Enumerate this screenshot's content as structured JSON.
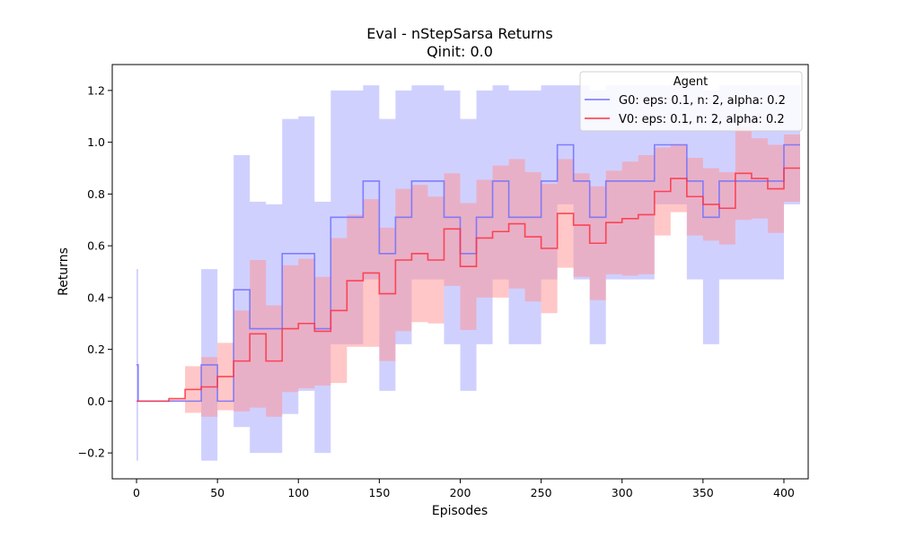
{
  "chart_data": {
    "type": "line",
    "title": "Eval - nStepSarsa Returns",
    "subtitle": "Qinit: 0.0",
    "xlabel": "Episodes",
    "ylabel": "Returns",
    "xlim": [
      -15,
      415
    ],
    "ylim": [
      -0.3,
      1.3
    ],
    "xticks": [
      0,
      50,
      100,
      150,
      200,
      250,
      300,
      350,
      400
    ],
    "yticks": [
      -0.2,
      0.0,
      0.2,
      0.4,
      0.6,
      0.8,
      1.0,
      1.2
    ],
    "ytick_labels": [
      "−0.2",
      "0.0",
      "0.2",
      "0.4",
      "0.6",
      "0.8",
      "1.0",
      "1.2"
    ],
    "grid": false,
    "legend": {
      "title": "Agent",
      "placement": "top-right"
    },
    "colors": {
      "G0": "#7070ff",
      "V0": "#ff3040",
      "G0_band": "#c8c8ff",
      "V0_band": "#ff9090"
    },
    "series": [
      {
        "name": "G0: eps: 0.1, n: 2, alpha: 0.2",
        "x": [
          0,
          1,
          2,
          10,
          20,
          30,
          40,
          50,
          60,
          70,
          80,
          90,
          100,
          110,
          120,
          130,
          140,
          150,
          160,
          170,
          180,
          190,
          200,
          210,
          220,
          230,
          240,
          250,
          260,
          270,
          280,
          290,
          300,
          310,
          320,
          330,
          340,
          350,
          360,
          370,
          380,
          390,
          400,
          410
        ],
        "mean": [
          0.14,
          0.0,
          0.0,
          0.0,
          0.0,
          0.0,
          0.14,
          0.0,
          0.43,
          0.28,
          0.28,
          0.57,
          0.57,
          0.28,
          0.71,
          0.71,
          0.85,
          0.57,
          0.71,
          0.85,
          0.85,
          0.71,
          0.57,
          0.71,
          0.85,
          0.71,
          0.71,
          0.85,
          0.99,
          0.85,
          0.71,
          0.85,
          0.85,
          0.85,
          0.99,
          0.99,
          0.85,
          0.71,
          0.85,
          0.85,
          0.85,
          0.85,
          0.99,
          0.99
        ],
        "upper": [
          0.51,
          0.0,
          0.0,
          0.0,
          0.0,
          0.0,
          0.51,
          0.0,
          0.95,
          0.77,
          0.76,
          1.09,
          1.1,
          0.77,
          1.2,
          1.2,
          1.22,
          1.09,
          1.2,
          1.22,
          1.22,
          1.2,
          1.09,
          1.2,
          1.22,
          1.2,
          1.2,
          1.22,
          1.22,
          1.22,
          1.2,
          1.22,
          1.22,
          1.22,
          1.22,
          1.22,
          1.22,
          1.2,
          1.22,
          1.22,
          1.22,
          1.22,
          1.22,
          1.22
        ],
        "lower": [
          -0.23,
          0.0,
          0.0,
          0.0,
          0.0,
          0.0,
          -0.23,
          0.0,
          -0.1,
          -0.2,
          -0.2,
          -0.05,
          0.04,
          -0.2,
          0.22,
          0.22,
          0.47,
          0.04,
          0.22,
          0.47,
          0.47,
          0.22,
          0.04,
          0.22,
          0.47,
          0.22,
          0.22,
          0.47,
          0.76,
          0.47,
          0.22,
          0.47,
          0.47,
          0.47,
          0.76,
          0.76,
          0.47,
          0.22,
          0.47,
          0.47,
          0.47,
          0.47,
          0.76,
          0.76
        ]
      },
      {
        "name": "V0: eps: 0.1, n: 2, alpha: 0.2",
        "x": [
          0,
          10,
          20,
          30,
          40,
          50,
          60,
          70,
          80,
          90,
          100,
          110,
          120,
          130,
          140,
          150,
          160,
          170,
          180,
          190,
          200,
          210,
          220,
          230,
          240,
          250,
          260,
          270,
          280,
          290,
          300,
          310,
          320,
          330,
          340,
          350,
          360,
          370,
          380,
          390,
          400,
          410
        ],
        "mean": [
          0.0,
          0.0,
          0.01,
          0.045,
          0.055,
          0.095,
          0.155,
          0.26,
          0.155,
          0.28,
          0.3,
          0.27,
          0.35,
          0.465,
          0.495,
          0.415,
          0.545,
          0.57,
          0.545,
          0.665,
          0.52,
          0.63,
          0.655,
          0.685,
          0.635,
          0.59,
          0.725,
          0.68,
          0.61,
          0.69,
          0.705,
          0.72,
          0.81,
          0.86,
          0.79,
          0.76,
          0.745,
          0.88,
          0.86,
          0.82,
          0.9,
          0.9
        ],
        "upper": [
          0.0,
          0.0,
          0.01,
          0.135,
          0.17,
          0.225,
          0.35,
          0.545,
          0.37,
          0.525,
          0.55,
          0.48,
          0.63,
          0.72,
          0.78,
          0.67,
          0.82,
          0.835,
          0.79,
          0.88,
          0.765,
          0.855,
          0.91,
          0.935,
          0.885,
          0.84,
          0.935,
          0.88,
          0.83,
          0.89,
          0.925,
          0.95,
          0.98,
          0.99,
          0.94,
          0.9,
          0.885,
          1.06,
          1.015,
          0.99,
          1.03,
          1.02
        ],
        "lower": [
          0.0,
          0.0,
          0.0,
          -0.045,
          -0.06,
          -0.035,
          -0.04,
          -0.025,
          -0.06,
          0.035,
          0.05,
          0.06,
          0.07,
          0.21,
          0.21,
          0.155,
          0.27,
          0.305,
          0.3,
          0.445,
          0.275,
          0.4,
          0.4,
          0.435,
          0.385,
          0.34,
          0.515,
          0.48,
          0.39,
          0.49,
          0.485,
          0.49,
          0.64,
          0.73,
          0.64,
          0.62,
          0.605,
          0.7,
          0.705,
          0.65,
          0.77,
          0.78
        ]
      }
    ]
  }
}
